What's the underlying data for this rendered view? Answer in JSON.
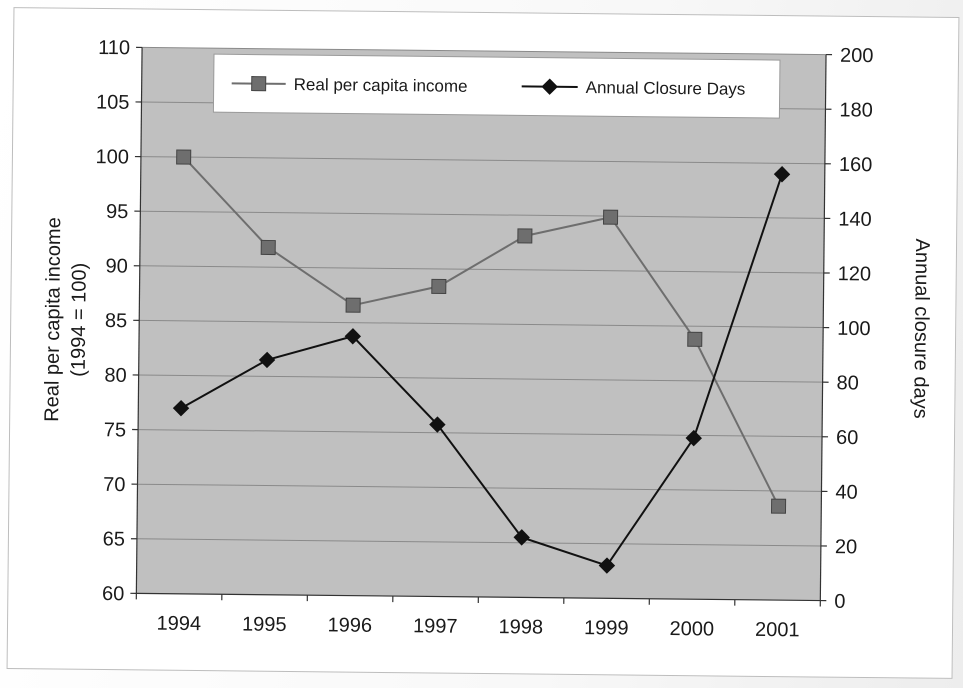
{
  "chart_data": {
    "type": "line",
    "title": "",
    "categories": [
      "1994",
      "1995",
      "1996",
      "1997",
      "1998",
      "1999",
      "2000",
      "2001"
    ],
    "y_left": {
      "label_line1": "Real per capita income",
      "label_line2": "(1994 = 100)",
      "range": [
        60,
        110
      ],
      "ticks": [
        60,
        65,
        70,
        75,
        80,
        85,
        90,
        95,
        100,
        105,
        110
      ]
    },
    "y_right": {
      "label": "Annual closure days",
      "range": [
        0,
        200
      ],
      "ticks": [
        0,
        20,
        40,
        60,
        80,
        100,
        120,
        140,
        160,
        180,
        200
      ]
    },
    "grid": true,
    "legend_position": "top",
    "series": [
      {
        "name": "Real per capita income",
        "axis": "left",
        "marker": "square",
        "color": "#6e6e6e",
        "values": [
          100,
          91.8,
          86.6,
          88.4,
          93.1,
          94.9,
          83.8,
          68.6
        ]
      },
      {
        "name": "Annual Closure Days",
        "axis": "right",
        "marker": "diamond",
        "color": "#111111",
        "values": [
          68,
          86,
          95,
          63,
          22,
          12,
          59,
          156
        ]
      }
    ]
  },
  "colors": {
    "plot_background": "#c0c0c0",
    "gridline": "#8a8a8a"
  }
}
